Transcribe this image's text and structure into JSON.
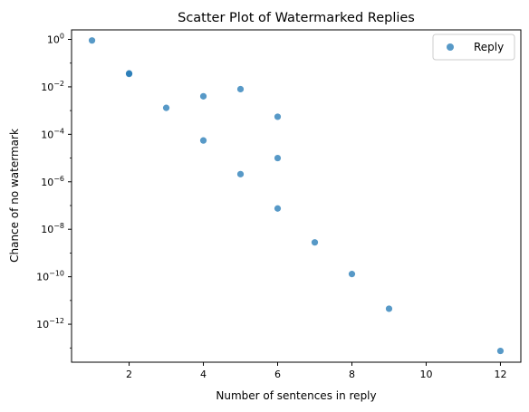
{
  "chart_data": {
    "type": "scatter",
    "title": "Scatter Plot of Watermarked Replies",
    "xlabel": "Number of sentences in reply",
    "ylabel": "Chance of no watermark",
    "xlim": [
      0.45,
      12.55
    ],
    "ylim_log10": [
      -13.6,
      0.4
    ],
    "yscale": "log",
    "xticks": [
      2,
      4,
      6,
      8,
      10,
      12
    ],
    "yticks": [
      {
        "exp": 0,
        "label": "10",
        "sup": "0"
      },
      {
        "exp": -2,
        "label": "10",
        "sup": "−2"
      },
      {
        "exp": -4,
        "label": "10",
        "sup": "−4"
      },
      {
        "exp": -6,
        "label": "10",
        "sup": "−6"
      },
      {
        "exp": -8,
        "label": "10",
        "sup": "−8"
      },
      {
        "exp": -10,
        "label": "10",
        "sup": "−10"
      },
      {
        "exp": -12,
        "label": "10",
        "sup": "−12"
      }
    ],
    "grid": false,
    "legend": {
      "position": "top-right",
      "entries": [
        "Reply"
      ]
    },
    "series": [
      {
        "name": "Reply",
        "color": "#1f77b4",
        "points": [
          {
            "x": 1,
            "y": 0.9
          },
          {
            "x": 2,
            "y": 0.037
          },
          {
            "x": 2,
            "y": 0.035
          },
          {
            "x": 3,
            "y": 0.0013
          },
          {
            "x": 4,
            "y": 0.004
          },
          {
            "x": 4,
            "y": 5.5e-05
          },
          {
            "x": 5,
            "y": 0.008
          },
          {
            "x": 5,
            "y": 2.1e-06
          },
          {
            "x": 6,
            "y": 0.00055
          },
          {
            "x": 6,
            "y": 1e-05
          },
          {
            "x": 6,
            "y": 7.5e-08
          },
          {
            "x": 7,
            "y": 2.8e-09
          },
          {
            "x": 8,
            "y": 1.3e-10
          },
          {
            "x": 9,
            "y": 4.5e-12
          },
          {
            "x": 12,
            "y": 7.5e-14
          }
        ]
      }
    ]
  }
}
